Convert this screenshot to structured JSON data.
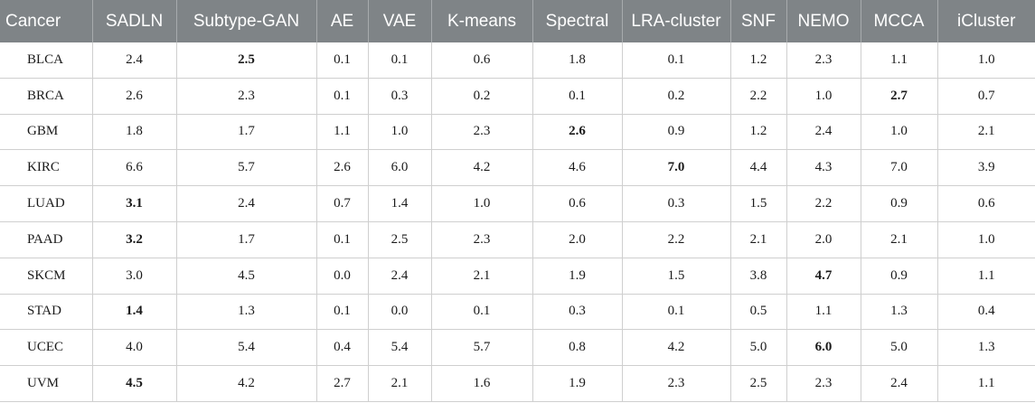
{
  "table": {
    "headers": [
      "Cancer",
      "SADLN",
      "Subtype-GAN",
      "AE",
      "VAE",
      "K-means",
      "Spectral",
      "LRA-cluster",
      "SNF",
      "NEMO",
      "MCCA",
      "iCluster"
    ],
    "rows": [
      {
        "cells": [
          "BLCA",
          "2.4",
          "2.5",
          "0.1",
          "0.1",
          "0.6",
          "1.8",
          "0.1",
          "1.2",
          "2.3",
          "1.1",
          "1.0"
        ],
        "bold": [
          2
        ]
      },
      {
        "cells": [
          "BRCA",
          "2.6",
          "2.3",
          "0.1",
          "0.3",
          "0.2",
          "0.1",
          "0.2",
          "2.2",
          "1.0",
          "2.7",
          "0.7"
        ],
        "bold": [
          10
        ]
      },
      {
        "cells": [
          "GBM",
          "1.8",
          "1.7",
          "1.1",
          "1.0",
          "2.3",
          "2.6",
          "0.9",
          "1.2",
          "2.4",
          "1.0",
          "2.1"
        ],
        "bold": [
          6
        ]
      },
      {
        "cells": [
          "KIRC",
          "6.6",
          "5.7",
          "2.6",
          "6.0",
          "4.2",
          "4.6",
          "7.0",
          "4.4",
          "4.3",
          "7.0",
          "3.9"
        ],
        "bold": [
          7
        ]
      },
      {
        "cells": [
          "LUAD",
          "3.1",
          "2.4",
          "0.7",
          "1.4",
          "1.0",
          "0.6",
          "0.3",
          "1.5",
          "2.2",
          "0.9",
          "0.6"
        ],
        "bold": [
          1
        ]
      },
      {
        "cells": [
          "PAAD",
          "3.2",
          "1.7",
          "0.1",
          "2.5",
          "2.3",
          "2.0",
          "2.2",
          "2.1",
          "2.0",
          "2.1",
          "1.0"
        ],
        "bold": [
          1
        ]
      },
      {
        "cells": [
          "SKCM",
          "3.0",
          "4.5",
          "0.0",
          "2.4",
          "2.1",
          "1.9",
          "1.5",
          "3.8",
          "4.7",
          "0.9",
          "1.1"
        ],
        "bold": [
          9
        ]
      },
      {
        "cells": [
          "STAD",
          "1.4",
          "1.3",
          "0.1",
          "0.0",
          "0.1",
          "0.3",
          "0.1",
          "0.5",
          "1.1",
          "1.3",
          "0.4"
        ],
        "bold": [
          1
        ]
      },
      {
        "cells": [
          "UCEC",
          "4.0",
          "5.4",
          "0.4",
          "5.4",
          "5.7",
          "0.8",
          "4.2",
          "5.0",
          "6.0",
          "5.0",
          "1.3"
        ],
        "bold": [
          9
        ]
      },
      {
        "cells": [
          "UVM",
          "4.5",
          "4.2",
          "2.7",
          "2.1",
          "1.6",
          "1.9",
          "2.3",
          "2.5",
          "2.3",
          "2.4",
          "1.1"
        ],
        "bold": [
          1
        ]
      }
    ]
  }
}
